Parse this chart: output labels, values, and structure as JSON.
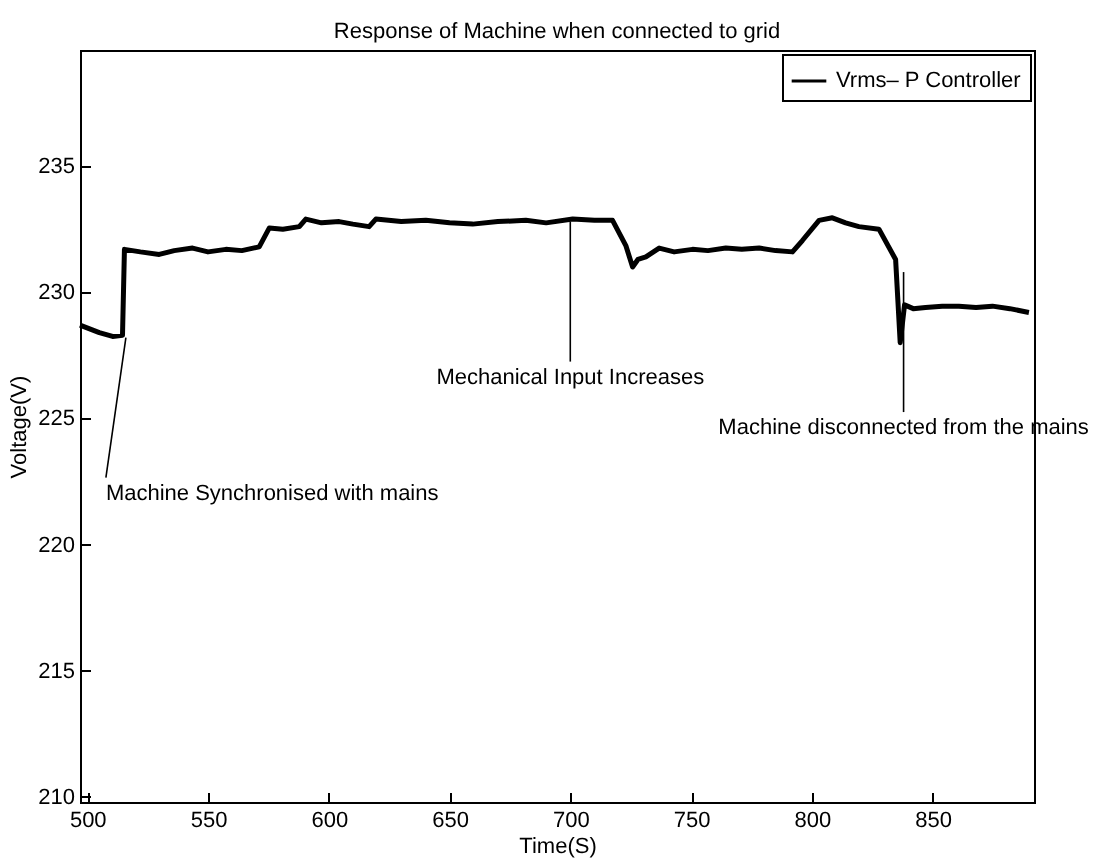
{
  "chart_data": {
    "type": "line",
    "title": "Response of Machine when connected to grid",
    "xlabel": "Time(S)",
    "ylabel": "Voltage(V)",
    "xlim": [
      497,
      892
    ],
    "ylim": [
      209.8,
      239.6
    ],
    "xticks": [
      500,
      550,
      600,
      650,
      700,
      750,
      800,
      850
    ],
    "yticks": [
      210,
      215,
      220,
      225,
      230,
      235
    ],
    "grid": false,
    "legend": "top right",
    "line_style": "solid",
    "marker": "none",
    "series": [
      {
        "name": "Vrms– P Controller",
        "color": "#000000",
        "x": [
          497,
          505,
          510.5,
          514.6,
          515.4,
          522,
          529.8,
          536,
          543.6,
          550,
          557.4,
          564,
          571.2,
          575.4,
          581,
          587.8,
          590.5,
          597,
          604.3,
          610,
          616.7,
          619.5,
          630,
          640.2,
          650,
          659.6,
          670,
          681.6,
          690,
          701,
          710,
          717.5,
          723,
          725.8,
          728,
          731.3,
          736.8,
          743,
          750.6,
          757,
          764.4,
          771,
          778.2,
          785,
          792,
          796.1,
          803,
          808.5,
          814,
          819.5,
          827.8,
          834.7,
          836.6,
          838.4,
          842,
          847.1,
          854,
          860.9,
          868,
          874.8,
          882,
          889.9
        ],
        "values": [
          228.7,
          228.4,
          228.25,
          228.3,
          231.7,
          231.6,
          231.5,
          231.65,
          231.75,
          231.6,
          231.7,
          231.65,
          231.8,
          232.55,
          232.5,
          232.6,
          232.9,
          232.75,
          232.8,
          232.7,
          232.6,
          232.9,
          232.8,
          232.85,
          232.75,
          232.7,
          232.8,
          232.85,
          232.75,
          232.9,
          232.85,
          232.85,
          231.85,
          231.0,
          231.3,
          231.4,
          231.75,
          231.6,
          231.7,
          231.65,
          231.75,
          231.7,
          231.75,
          231.65,
          231.6,
          232.05,
          232.85,
          232.95,
          232.75,
          232.6,
          232.5,
          231.3,
          228.0,
          229.5,
          229.35,
          229.4,
          229.45,
          229.45,
          229.4,
          229.45,
          229.35,
          229.2
        ]
      }
    ],
    "annotations": [
      {
        "text": "Machine Synchronised with mains",
        "x": 516,
        "y": 228.2
      },
      {
        "text": "Mechanical Input Increases",
        "x": 700,
        "y": 232.8
      },
      {
        "text": "Machine disconnected from the mains",
        "x": 838,
        "y": 230.8
      }
    ]
  }
}
